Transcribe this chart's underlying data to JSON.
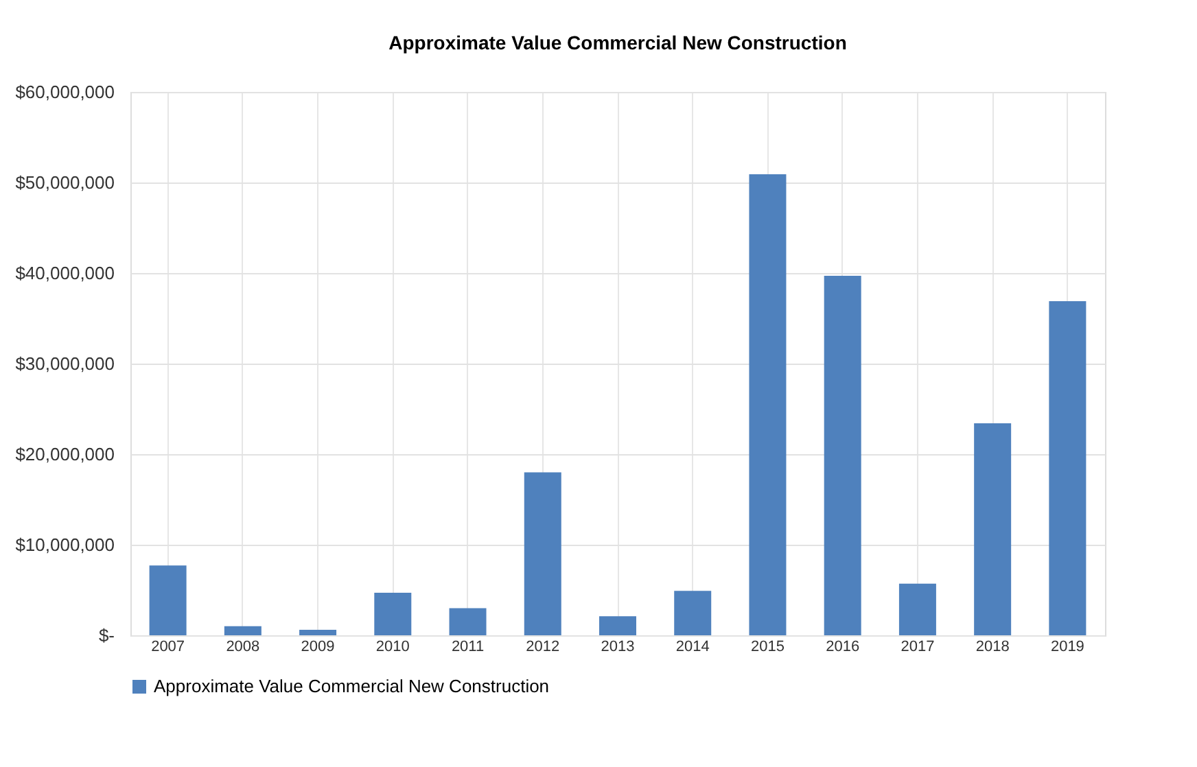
{
  "chart_data": {
    "type": "bar",
    "title": "Approximate Value Commercial  New Construction",
    "categories": [
      "2007",
      "2008",
      "2009",
      "2010",
      "2011",
      "2012",
      "2013",
      "2014",
      "2015",
      "2016",
      "2017",
      "2018",
      "2019"
    ],
    "series": [
      {
        "name": "Approximate Value Commercial  New Construction",
        "color": "#4f81bd",
        "values": [
          7700000,
          1000000,
          600000,
          4700000,
          3000000,
          18000000,
          2100000,
          4900000,
          50900000,
          39700000,
          5700000,
          23400000,
          36900000
        ]
      }
    ],
    "ylim": [
      0,
      60000000
    ],
    "yticks": [
      {
        "value": 0,
        "label": "$-"
      },
      {
        "value": 10000000,
        "label": "$10,000,000"
      },
      {
        "value": 20000000,
        "label": "$20,000,000"
      },
      {
        "value": 30000000,
        "label": "$30,000,000"
      },
      {
        "value": 40000000,
        "label": "$40,000,000"
      },
      {
        "value": 50000000,
        "label": "$50,000,000"
      },
      {
        "value": 60000000,
        "label": "$60,000,000"
      }
    ],
    "grid": true,
    "legend": "bottom"
  }
}
